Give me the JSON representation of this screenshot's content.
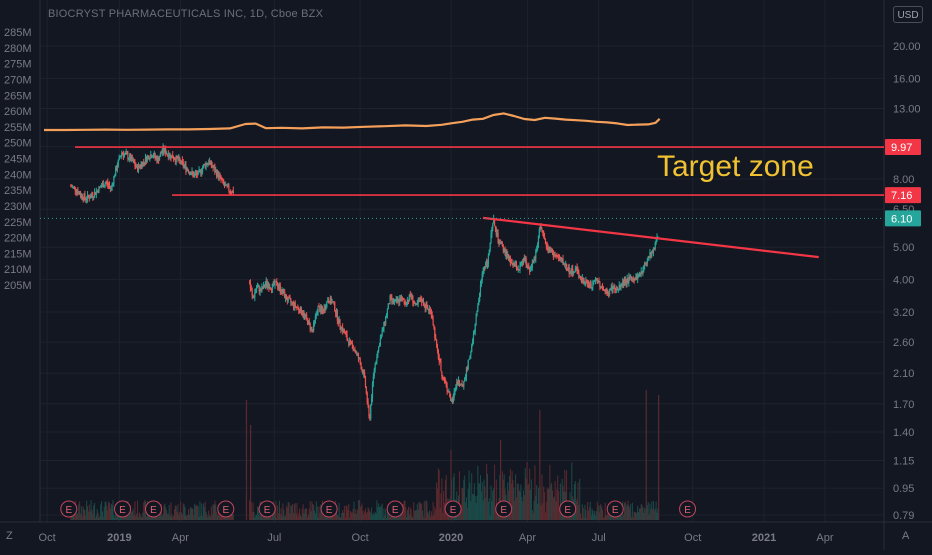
{
  "header": {
    "symbol_text": "BIOCRYST PHARMACEUTICALS INC, 1D, Cboe BZX",
    "currency_label": "USD"
  },
  "annotation": {
    "target_zone_label": "Target zone",
    "line_color": "#f23645",
    "text_color": "#f0c231"
  },
  "corner": {
    "left_label": "Z",
    "right_label": "A"
  },
  "chart_data": {
    "type": "line",
    "title": "BIOCRYST PHARMACEUTICALS INC, 1D, Cboe BZX",
    "x_ticks": [
      "Oct",
      "2019",
      "Apr",
      "Jul",
      "Oct",
      "2020",
      "Apr",
      "Jul",
      "Oct",
      "2021",
      "Apr"
    ],
    "right_axis": {
      "scale": "log",
      "ticks": [
        20.0,
        16.0,
        13.0,
        10.0,
        8.0,
        6.5,
        5.0,
        4.0,
        3.2,
        2.6,
        2.1,
        1.7,
        1.4,
        1.15,
        0.95,
        0.79
      ],
      "tick_labels": [
        "20.00",
        "16.00",
        "13.00",
        "10.00",
        "8.00",
        "6.50",
        "5.00",
        "4.00",
        "3.20",
        "2.60",
        "2.10",
        "1.70",
        "1.40",
        "1.15",
        "0.95",
        "0.79"
      ],
      "price_labels": [
        {
          "value": 9.97,
          "label": "9.97",
          "color": "#f23645"
        },
        {
          "value": 7.16,
          "label": "7.16",
          "color": "#f23645"
        },
        {
          "value": 6.1,
          "label": "6.10",
          "color": "#26a69a"
        }
      ]
    },
    "left_axis": {
      "ticks": [
        285,
        280,
        275,
        270,
        265,
        260,
        255,
        250,
        245,
        240,
        235,
        230,
        225,
        220,
        215,
        210,
        205
      ],
      "tick_labels": [
        "285M",
        "280M",
        "275M",
        "270M",
        "265M",
        "260M",
        "255M",
        "250M",
        "245M",
        "240M",
        "235M",
        "230M",
        "225M",
        "220M",
        "215M",
        "210M",
        "205M"
      ]
    },
    "price_series": {
      "color_up": "#26a69a",
      "color_down": "#ef5350",
      "segment_1": {
        "months": [
          2.6,
          3.0,
          3.5,
          4.0,
          4.5,
          5.0,
          5.5,
          6.0,
          6.5,
          7.0,
          7.5,
          8.0,
          8.5,
          9.0,
          9.5,
          10.0,
          10.5,
          11.0,
          11.5,
          12.0,
          12.5,
          13.0,
          13.5,
          14.0,
          14.5,
          15.0,
          15.5,
          16.0,
          16.5,
          17.0,
          17.5,
          18.0,
          18.4
        ],
        "values": [
          7.6,
          7.5,
          7.2,
          7.0,
          7.1,
          7.3,
          7.6,
          7.8,
          7.5,
          8.6,
          9.6,
          9.4,
          9.1,
          8.6,
          8.9,
          9.3,
          9.5,
          9.1,
          9.8,
          9.5,
          9.3,
          9.1,
          8.8,
          8.5,
          8.2,
          8.3,
          8.8,
          9.0,
          8.5,
          8.1,
          7.6,
          7.4,
          7.3
        ]
      },
      "segment_2": {
        "months": [
          19.9,
          20.2,
          20.6,
          21.0,
          21.5,
          22.0,
          22.5,
          23.0,
          23.5,
          24.0,
          24.5,
          25.0,
          25.5,
          26.0,
          26.5,
          27.0,
          27.5,
          28.0,
          28.5,
          29.0,
          29.5,
          30.0,
          30.5,
          31.0,
          31.5,
          32.0,
          32.5,
          33.0,
          33.5,
          34.0,
          34.5,
          35.0,
          35.5,
          36.0,
          36.5,
          37.0,
          37.5,
          38.0,
          38.5,
          39.0,
          39.5,
          40.0,
          40.5,
          41.0,
          41.5,
          42.0,
          42.5,
          43.0,
          43.5,
          44.0,
          44.5,
          45.0,
          45.5,
          46.0,
          46.5,
          47.0,
          47.5,
          48.0,
          48.5,
          49.0,
          49.5,
          50.0,
          50.5,
          51.0,
          51.5,
          52.0,
          52.5,
          53.0,
          53.5,
          54.0,
          54.5,
          55.0,
          55.5,
          56.0,
          56.5,
          57.0,
          57.5,
          58.0,
          58.5,
          59.0,
          59.5
        ],
        "values": [
          3.9,
          3.5,
          3.8,
          3.7,
          3.9,
          3.8,
          3.9,
          3.7,
          3.5,
          3.4,
          3.3,
          3.2,
          3.0,
          2.8,
          3.3,
          3.2,
          3.5,
          3.4,
          3.0,
          2.8,
          2.6,
          2.5,
          2.3,
          2.05,
          1.5,
          2.2,
          2.6,
          3.0,
          3.5,
          3.4,
          3.5,
          3.4,
          3.6,
          3.3,
          3.5,
          3.3,
          3.2,
          2.5,
          2.1,
          1.9,
          1.7,
          2.0,
          1.9,
          2.2,
          2.6,
          3.3,
          4.3,
          4.6,
          6.0,
          5.2,
          4.9,
          4.6,
          4.4,
          4.3,
          4.6,
          4.3,
          4.6,
          5.7,
          5.2,
          4.9,
          4.7,
          4.6,
          4.4,
          4.2,
          4.3,
          4.0,
          3.9,
          3.8,
          4.0,
          3.8,
          3.6,
          3.8,
          3.7,
          3.9,
          4.0,
          4.0,
          4.1,
          4.3,
          4.7,
          4.9,
          5.6
        ]
      }
    },
    "volume_ma": {
      "color": "#f5a05a",
      "months": [
        0,
        2,
        4,
        6,
        8,
        10,
        12,
        14,
        16,
        18,
        19.5,
        20.5,
        21.5,
        23,
        25,
        27,
        29,
        31,
        33,
        35,
        37,
        38.5,
        39.5,
        40.5,
        41.5,
        42.5,
        43.5,
        44.5,
        45.5,
        46.5,
        47.5,
        48.5,
        49.5,
        50.5,
        51.5,
        52.5,
        53.5,
        54.5,
        55.5,
        56.5,
        57.5,
        58.5,
        59.2,
        59.6
      ],
      "values": [
        202.0,
        202.0,
        202.1,
        202.2,
        202.1,
        202.2,
        202.3,
        202.3,
        202.5,
        202.8,
        205.0,
        205.2,
        202.9,
        203.1,
        202.8,
        203.3,
        203.2,
        203.6,
        203.9,
        204.3,
        204.0,
        204.6,
        205.4,
        206.1,
        207.2,
        207.6,
        209.5,
        210.3,
        209.0,
        207.5,
        207.0,
        208.1,
        207.7,
        207.2,
        206.9,
        206.6,
        206.1,
        205.8,
        205.3,
        204.5,
        204.7,
        204.8,
        205.6,
        207.6
      ]
    },
    "earnings_markers": {
      "label": "E",
      "months": [
        2.4,
        7.6,
        10.6,
        17.6,
        21.6,
        27.6,
        34.0,
        39.6,
        44.5,
        50.7,
        55.3,
        62.3
      ]
    },
    "drawings": [
      {
        "type": "horizontal",
        "value": 9.97,
        "from_month": 3.0,
        "color": "#f23645"
      },
      {
        "type": "horizontal",
        "value": 7.16,
        "from_month": 12.4,
        "color": "#f23645"
      },
      {
        "type": "trendline",
        "from": [
          42.5,
          6.12
        ],
        "to": [
          75.0,
          4.67
        ],
        "color": "#f23645"
      },
      {
        "type": "dotted",
        "value": 6.1,
        "color": "#26a69a"
      }
    ],
    "grid": true
  }
}
